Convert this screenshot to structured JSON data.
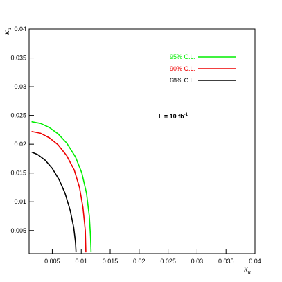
{
  "chart_data": {
    "type": "line",
    "xlim": [
      0.001,
      0.04
    ],
    "ylim": [
      0.001,
      0.04
    ],
    "x_ticks": [
      0.005,
      0.01,
      0.015,
      0.02,
      0.025,
      0.03,
      0.035,
      0.04
    ],
    "x_tick_labels": [
      "0.005",
      "0.01",
      "0.015",
      "0.02",
      "0.025",
      "0.03",
      "0.035",
      "0.04"
    ],
    "y_ticks": [
      0.005,
      0.01,
      0.015,
      0.02,
      0.025,
      0.03,
      0.035,
      0.04
    ],
    "y_tick_labels": [
      "0.005",
      "0.01",
      "0.015",
      "0.02",
      "0.025",
      "0.03",
      "0.035",
      "0.04"
    ],
    "xlabel": {
      "symbol": "κ",
      "sub": "u"
    },
    "ylabel": {
      "symbol": "κ",
      "sub": "u"
    },
    "annotation": {
      "text": "L = 10 fb",
      "sup": "-1"
    },
    "legend_position": "top-right",
    "grid": false,
    "series": [
      {
        "name": "95% C.L.",
        "color": "#00ee00",
        "points": [
          [
            0.0015,
            0.0239
          ],
          [
            0.003,
            0.0236
          ],
          [
            0.0045,
            0.0229
          ],
          [
            0.006,
            0.0218
          ],
          [
            0.0075,
            0.0202
          ],
          [
            0.009,
            0.0178
          ],
          [
            0.0101,
            0.015
          ],
          [
            0.0109,
            0.0115
          ],
          [
            0.0114,
            0.0075
          ],
          [
            0.0116,
            0.004
          ],
          [
            0.0117,
            0.0013
          ]
        ]
      },
      {
        "name": "90% C.L.",
        "color": "#ee0000",
        "points": [
          [
            0.0015,
            0.0222
          ],
          [
            0.003,
            0.0219
          ],
          [
            0.0045,
            0.0211
          ],
          [
            0.006,
            0.0199
          ],
          [
            0.0075,
            0.018
          ],
          [
            0.0088,
            0.0155
          ],
          [
            0.0097,
            0.0125
          ],
          [
            0.0103,
            0.009
          ],
          [
            0.0107,
            0.005
          ],
          [
            0.0108,
            0.0013
          ]
        ]
      },
      {
        "name": "68% C.L.",
        "color": "#000000",
        "points": [
          [
            0.0015,
            0.0186
          ],
          [
            0.0025,
            0.0182
          ],
          [
            0.0038,
            0.0172
          ],
          [
            0.005,
            0.0158
          ],
          [
            0.0062,
            0.0138
          ],
          [
            0.0072,
            0.0115
          ],
          [
            0.0081,
            0.0085
          ],
          [
            0.0087,
            0.0055
          ],
          [
            0.009,
            0.003
          ],
          [
            0.0091,
            0.0013
          ]
        ]
      }
    ]
  }
}
